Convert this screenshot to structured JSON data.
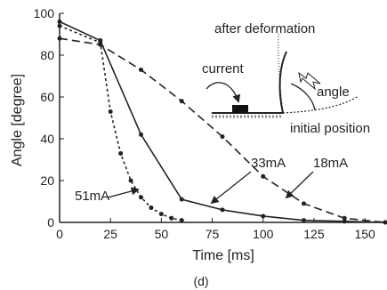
{
  "chart_data": {
    "type": "line",
    "xlabel": "Time [ms]",
    "ylabel": "Angle [degree]",
    "caption": "(d)",
    "xlim": [
      0,
      160
    ],
    "ylim": [
      0,
      100
    ],
    "x_ticks": [
      "0",
      "25",
      "50",
      "75",
      "100",
      "125",
      "150"
    ],
    "y_ticks": [
      "0",
      "20",
      "40",
      "60",
      "80",
      "100"
    ],
    "grid": false,
    "series": [
      {
        "name": "51mA",
        "line_style": "dotted",
        "x": [
          0,
          20,
          25,
          30,
          35,
          40,
          45,
          50,
          55,
          60
        ],
        "y": [
          94,
          86,
          53,
          33,
          20,
          12,
          7,
          4,
          2,
          1
        ]
      },
      {
        "name": "33mA",
        "line_style": "solid",
        "x": [
          0,
          20,
          40,
          60,
          80,
          100,
          120,
          140,
          160
        ],
        "y": [
          96,
          87,
          42,
          11,
          6,
          3,
          1,
          0.5,
          0
        ]
      },
      {
        "name": "18mA",
        "line_style": "dashed",
        "x": [
          0,
          20,
          40,
          60,
          80,
          100,
          120,
          140,
          160
        ],
        "y": [
          88,
          85,
          73,
          58,
          41,
          22,
          9,
          2,
          0
        ]
      }
    ],
    "annotations": [
      "current",
      "after deformation",
      "angle",
      "initial position"
    ]
  }
}
